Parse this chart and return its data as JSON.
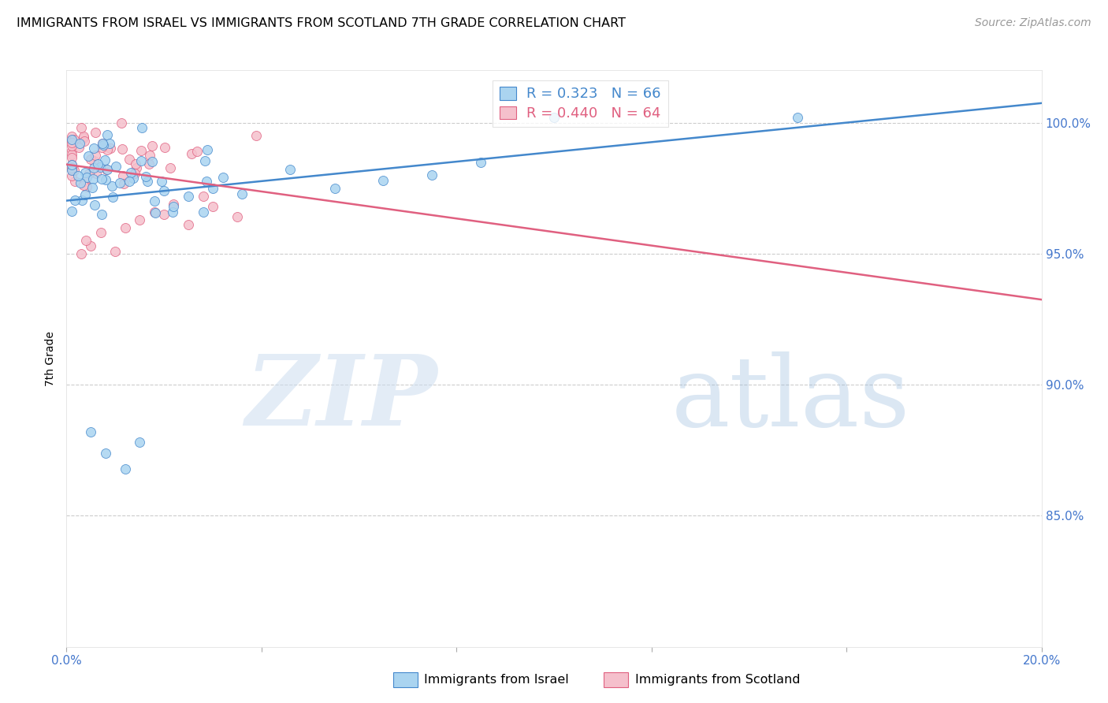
{
  "title": "IMMIGRANTS FROM ISRAEL VS IMMIGRANTS FROM SCOTLAND 7TH GRADE CORRELATION CHART",
  "source": "Source: ZipAtlas.com",
  "ylabel": "7th Grade",
  "xmin": 0.0,
  "xmax": 0.2,
  "ymin": 0.8,
  "ymax": 1.02,
  "legend_r_israel": "R = 0.323",
  "legend_n_israel": "N = 66",
  "legend_r_scotland": "R = 0.440",
  "legend_n_scotland": "N = 64",
  "color_israel": "#aad4f0",
  "color_scotland": "#f5c0cc",
  "color_israel_line": "#4488cc",
  "color_scotland_line": "#e06080",
  "watermark_zip_color": "#ccddf0",
  "watermark_atlas_color": "#99bbdd",
  "grid_color": "#cccccc",
  "tick_color": "#4477cc",
  "title_fontsize": 11.5,
  "source_fontsize": 10,
  "xtick_positions": [
    0.0,
    0.04,
    0.08,
    0.12,
    0.16,
    0.2
  ],
  "xtick_labels": [
    "0.0%",
    "",
    "",
    "",
    "",
    "20.0%"
  ],
  "ytick_positions": [
    0.85,
    0.9,
    0.95,
    1.0
  ],
  "ytick_labels": [
    "85.0%",
    "90.0%",
    "95.0%",
    "100.0%"
  ]
}
